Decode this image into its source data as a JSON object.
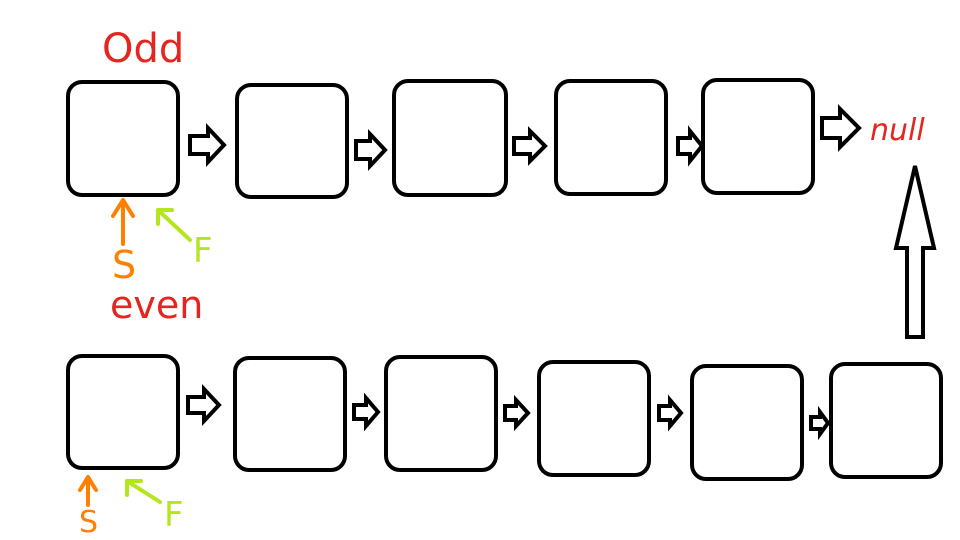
{
  "labels": {
    "odd": "Odd",
    "even": "even",
    "null": "null"
  },
  "pointers": {
    "slow": "S",
    "fast": "F"
  },
  "colors": {
    "label_red": "#e52620",
    "slow_orange": "#ff8000",
    "fast_green": "#b4e61e",
    "stroke": "#000000"
  },
  "lists": {
    "odd_node_count": 5,
    "even_node_count": 6
  }
}
